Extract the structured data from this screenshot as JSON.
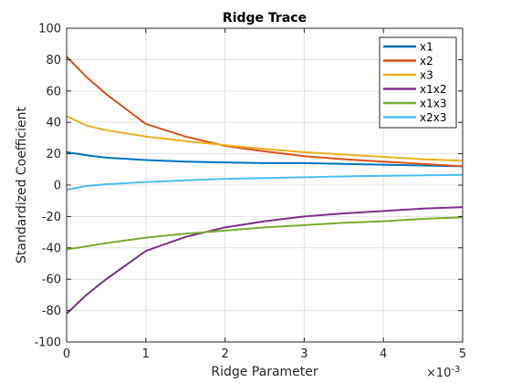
{
  "chart_data": {
    "type": "line",
    "title": "Ridge Trace",
    "xlabel": "Ridge Parameter",
    "ylabel": "Standardized Coefficient",
    "xlim": [
      0,
      0.005
    ],
    "ylim": [
      -100,
      100
    ],
    "x_tick_values": [
      0,
      0.001,
      0.002,
      0.003,
      0.004,
      0.005
    ],
    "x_tick_labels": [
      "0",
      "1",
      "2",
      "3",
      "4",
      "5"
    ],
    "x_exponent_label": "×10",
    "x_exponent_power": "-3",
    "y_tick_values": [
      -100,
      -80,
      -60,
      -40,
      -20,
      0,
      20,
      40,
      60,
      80,
      100
    ],
    "y_tick_labels": [
      "-100",
      "-80",
      "-60",
      "-40",
      "-20",
      "0",
      "20",
      "40",
      "60",
      "80",
      "100"
    ],
    "grid": true,
    "legend_position": "top-right",
    "x": [
      0,
      0.00025,
      0.0005,
      0.001,
      0.0015,
      0.002,
      0.0025,
      0.003,
      0.0035,
      0.004,
      0.0045,
      0.005
    ],
    "series": [
      {
        "name": "x1",
        "color": "#0072BD",
        "values": [
          21,
          19,
          17.5,
          16,
          15,
          14.5,
          14,
          14,
          13.5,
          13,
          12.5,
          12
        ]
      },
      {
        "name": "x2",
        "color": "#D95319",
        "values": [
          82,
          69,
          58,
          39,
          31,
          25,
          21.5,
          18.5,
          16.5,
          15,
          13.5,
          12
        ]
      },
      {
        "name": "x3",
        "color": "#EDB120",
        "values": [
          44,
          38,
          35,
          31,
          28,
          25.5,
          23,
          21,
          19.5,
          18,
          16.5,
          15.5
        ]
      },
      {
        "name": "x1x2",
        "color": "#7E2F8E",
        "values": [
          -82,
          -70,
          -60,
          -42,
          -33,
          -27,
          -23,
          -20,
          -18,
          -16.5,
          -15,
          -14
        ]
      },
      {
        "name": "x1x3",
        "color": "#77AC30",
        "values": [
          -41,
          -39,
          -37,
          -33.5,
          -31,
          -29,
          -27,
          -25.5,
          -24,
          -23,
          -21.5,
          -20.5
        ]
      },
      {
        "name": "x2x3",
        "color": "#4DBEEE",
        "values": [
          -3,
          -0.5,
          0.5,
          2,
          3,
          4,
          4.5,
          5,
          5.5,
          6,
          6.3,
          6.5
        ]
      }
    ]
  }
}
